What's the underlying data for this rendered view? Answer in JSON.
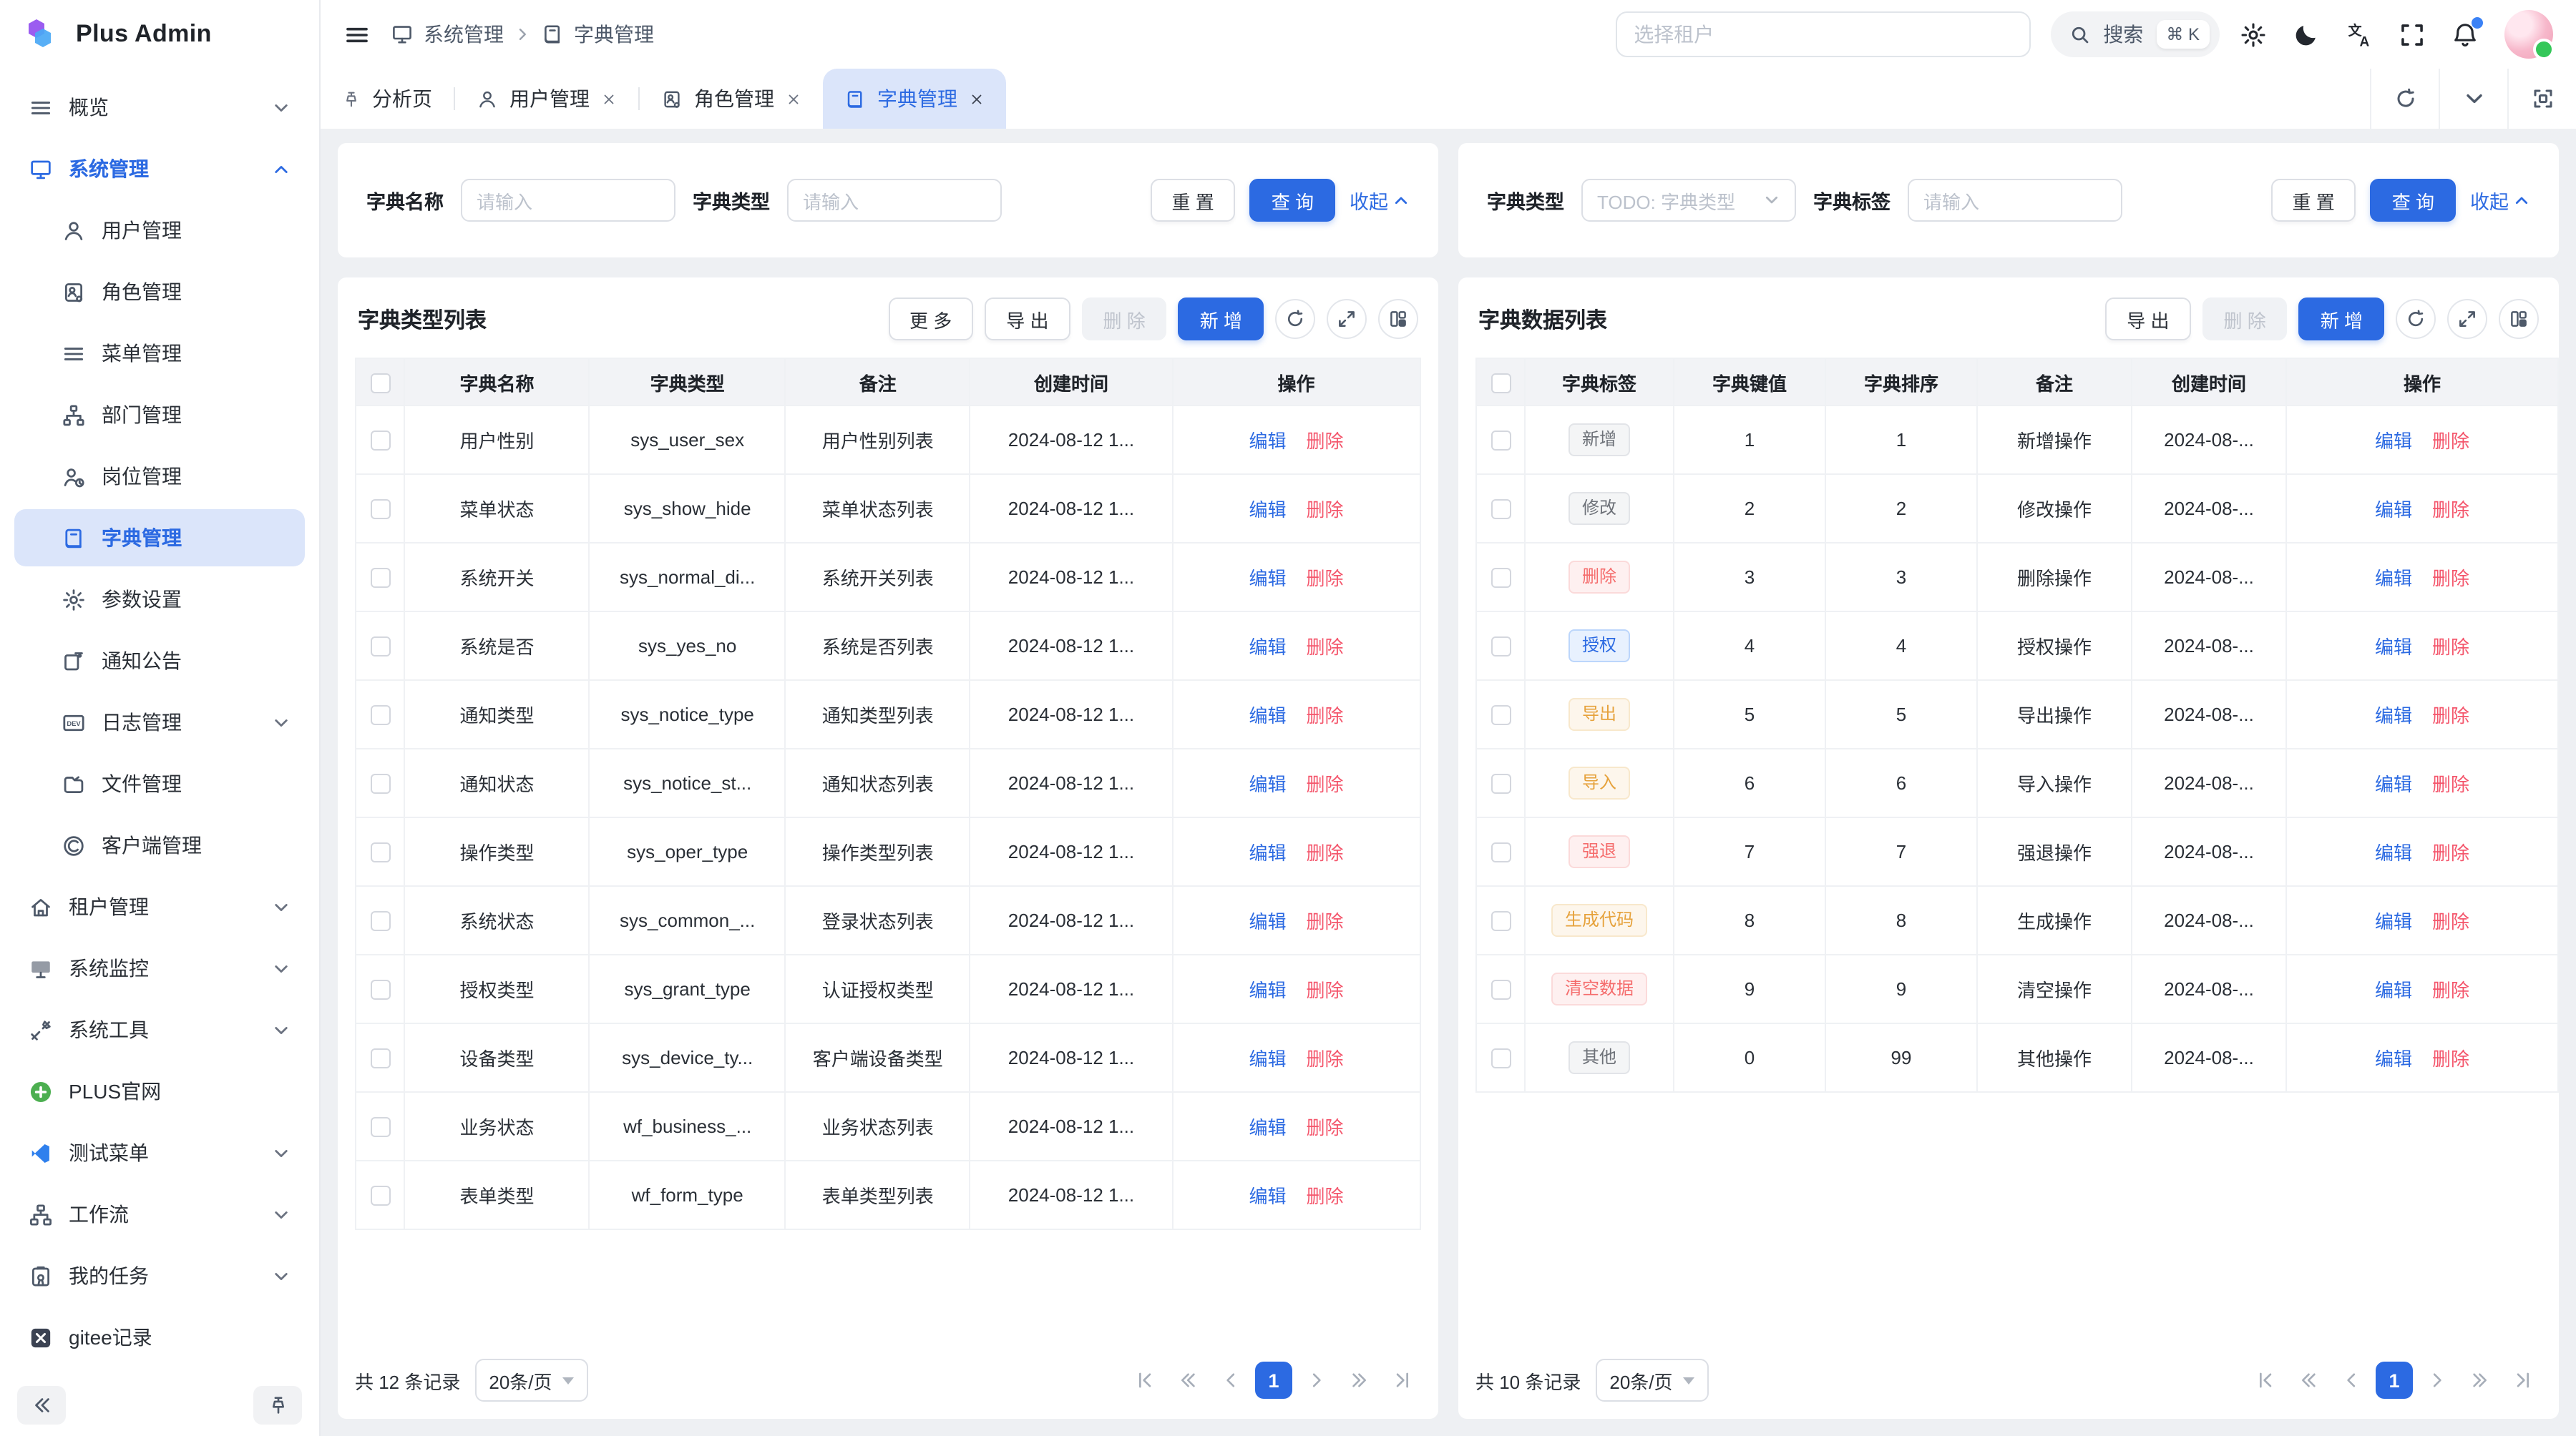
{
  "app": {
    "name": "Plus Admin"
  },
  "colors": {
    "primary": "#2c6ae2",
    "danger": "#f4566c",
    "warning": "#e6a23c",
    "active_tab_bg": "#dbe5fa",
    "content_bg": "#eef0f3",
    "tag_info": "#6d7178",
    "notification_dot": "#3b82f6",
    "online_dot": "#34c759"
  },
  "header": {
    "breadcrumb": [
      "系统管理",
      "字典管理"
    ],
    "tenant_placeholder": "选择租户",
    "search_label": "搜索",
    "search_shortcut": "⌘ K"
  },
  "tabs": [
    {
      "label": "分析页",
      "icon": "pin",
      "closable": false,
      "active": false
    },
    {
      "label": "用户管理",
      "icon": "user",
      "closable": true,
      "active": false
    },
    {
      "label": "角色管理",
      "icon": "role-badge",
      "closable": true,
      "active": false
    },
    {
      "label": "字典管理",
      "icon": "dict-book",
      "closable": true,
      "active": true
    }
  ],
  "sidebar": {
    "items": [
      {
        "label": "概览",
        "icon": "menu-lines",
        "level": 0,
        "chevron": "down"
      },
      {
        "label": "系统管理",
        "icon": "monitor",
        "level": 0,
        "chevron": "up",
        "parent": true
      },
      {
        "label": "用户管理",
        "icon": "user",
        "level": 1
      },
      {
        "label": "角色管理",
        "icon": "role-badge",
        "level": 1
      },
      {
        "label": "菜单管理",
        "icon": "menu-lines",
        "level": 1
      },
      {
        "label": "部门管理",
        "icon": "department",
        "level": 1
      },
      {
        "label": "岗位管理",
        "icon": "post",
        "level": 1
      },
      {
        "label": "字典管理",
        "icon": "dict-book",
        "level": 1,
        "active": true
      },
      {
        "label": "参数设置",
        "icon": "gear",
        "level": 1
      },
      {
        "label": "通知公告",
        "icon": "notice",
        "level": 1
      },
      {
        "label": "日志管理",
        "icon": "log-dev",
        "level": 1,
        "chevron": "down"
      },
      {
        "label": "文件管理",
        "icon": "folder",
        "level": 1
      },
      {
        "label": "客户端管理",
        "icon": "client",
        "level": 1
      },
      {
        "label": "租户管理",
        "icon": "home",
        "level": 0,
        "chevron": "down"
      },
      {
        "label": "系统监控",
        "icon": "monitor2",
        "level": 0,
        "chevron": "down"
      },
      {
        "label": "系统工具",
        "icon": "tools",
        "level": 0,
        "chevron": "down"
      },
      {
        "label": "PLUS官网",
        "icon": "plus-site",
        "level": 0
      },
      {
        "label": "测试菜单",
        "icon": "vscode",
        "level": 0,
        "chevron": "down"
      },
      {
        "label": "工作流",
        "icon": "workflow",
        "level": 0,
        "chevron": "down"
      },
      {
        "label": "我的任务",
        "icon": "tasks",
        "level": 0,
        "chevron": "down"
      },
      {
        "label": "gitee记录",
        "icon": "gitee",
        "level": 0
      }
    ]
  },
  "left_panel": {
    "search": {
      "fields": [
        {
          "label": "字典名称",
          "placeholder": "请输入"
        },
        {
          "label": "字典类型",
          "placeholder": "请输入"
        }
      ],
      "reset": "重 置",
      "query": "查 询",
      "collapse": "收起"
    },
    "table": {
      "title": "字典类型列表",
      "buttons": {
        "more": "更 多",
        "export": "导 出",
        "delete": "删 除",
        "add": "新 增"
      },
      "columns": [
        "字典名称",
        "字典类型",
        "备注",
        "创建时间",
        "操作"
      ],
      "ops": {
        "edit": "编辑",
        "delete": "删除"
      },
      "rows": [
        {
          "name": "用户性别",
          "type": "sys_user_sex",
          "remark": "用户性别列表",
          "time": "2024-08-12 1..."
        },
        {
          "name": "菜单状态",
          "type": "sys_show_hide",
          "remark": "菜单状态列表",
          "time": "2024-08-12 1..."
        },
        {
          "name": "系统开关",
          "type": "sys_normal_di...",
          "remark": "系统开关列表",
          "time": "2024-08-12 1..."
        },
        {
          "name": "系统是否",
          "type": "sys_yes_no",
          "remark": "系统是否列表",
          "time": "2024-08-12 1..."
        },
        {
          "name": "通知类型",
          "type": "sys_notice_type",
          "remark": "通知类型列表",
          "time": "2024-08-12 1..."
        },
        {
          "name": "通知状态",
          "type": "sys_notice_st...",
          "remark": "通知状态列表",
          "time": "2024-08-12 1..."
        },
        {
          "name": "操作类型",
          "type": "sys_oper_type",
          "remark": "操作类型列表",
          "time": "2024-08-12 1..."
        },
        {
          "name": "系统状态",
          "type": "sys_common_...",
          "remark": "登录状态列表",
          "time": "2024-08-12 1..."
        },
        {
          "name": "授权类型",
          "type": "sys_grant_type",
          "remark": "认证授权类型",
          "time": "2024-08-12 1..."
        },
        {
          "name": "设备类型",
          "type": "sys_device_ty...",
          "remark": "客户端设备类型",
          "time": "2024-08-12 1..."
        },
        {
          "name": "业务状态",
          "type": "wf_business_...",
          "remark": "业务状态列表",
          "time": "2024-08-12 1..."
        },
        {
          "name": "表单类型",
          "type": "wf_form_type",
          "remark": "表单类型列表",
          "time": "2024-08-12 1..."
        }
      ]
    },
    "pagination": {
      "total": "共 12 条记录",
      "page_size": "20条/页",
      "page": "1"
    }
  },
  "right_panel": {
    "search": {
      "type_label": "字典类型",
      "type_placeholder": "TODO: 字典类型",
      "tag_label": "字典标签",
      "tag_placeholder": "请输入",
      "reset": "重 置",
      "query": "查 询",
      "collapse": "收起"
    },
    "table": {
      "title": "字典数据列表",
      "buttons": {
        "export": "导 出",
        "delete": "删 除",
        "add": "新 增"
      },
      "columns": [
        "字典标签",
        "字典键值",
        "字典排序",
        "备注",
        "创建时间",
        "操作"
      ],
      "ops": {
        "edit": "编辑",
        "delete": "删除"
      },
      "rows": [
        {
          "tag": "新增",
          "tag_type": "info",
          "key": "1",
          "sort": "1",
          "remark": "新增操作",
          "time": "2024-08-..."
        },
        {
          "tag": "修改",
          "tag_type": "info",
          "key": "2",
          "sort": "2",
          "remark": "修改操作",
          "time": "2024-08-..."
        },
        {
          "tag": "删除",
          "tag_type": "danger",
          "key": "3",
          "sort": "3",
          "remark": "删除操作",
          "time": "2024-08-..."
        },
        {
          "tag": "授权",
          "tag_type": "primary",
          "key": "4",
          "sort": "4",
          "remark": "授权操作",
          "time": "2024-08-..."
        },
        {
          "tag": "导出",
          "tag_type": "warning",
          "key": "5",
          "sort": "5",
          "remark": "导出操作",
          "time": "2024-08-..."
        },
        {
          "tag": "导入",
          "tag_type": "warning",
          "key": "6",
          "sort": "6",
          "remark": "导入操作",
          "time": "2024-08-..."
        },
        {
          "tag": "强退",
          "tag_type": "danger",
          "key": "7",
          "sort": "7",
          "remark": "强退操作",
          "time": "2024-08-..."
        },
        {
          "tag": "生成代码",
          "tag_type": "warning",
          "key": "8",
          "sort": "8",
          "remark": "生成操作",
          "time": "2024-08-..."
        },
        {
          "tag": "清空数据",
          "tag_type": "danger",
          "key": "9",
          "sort": "9",
          "remark": "清空操作",
          "time": "2024-08-..."
        },
        {
          "tag": "其他",
          "tag_type": "info",
          "key": "0",
          "sort": "99",
          "remark": "其他操作",
          "time": "2024-08-..."
        }
      ]
    },
    "pagination": {
      "total": "共 10 条记录",
      "page_size": "20条/页",
      "page": "1"
    }
  }
}
